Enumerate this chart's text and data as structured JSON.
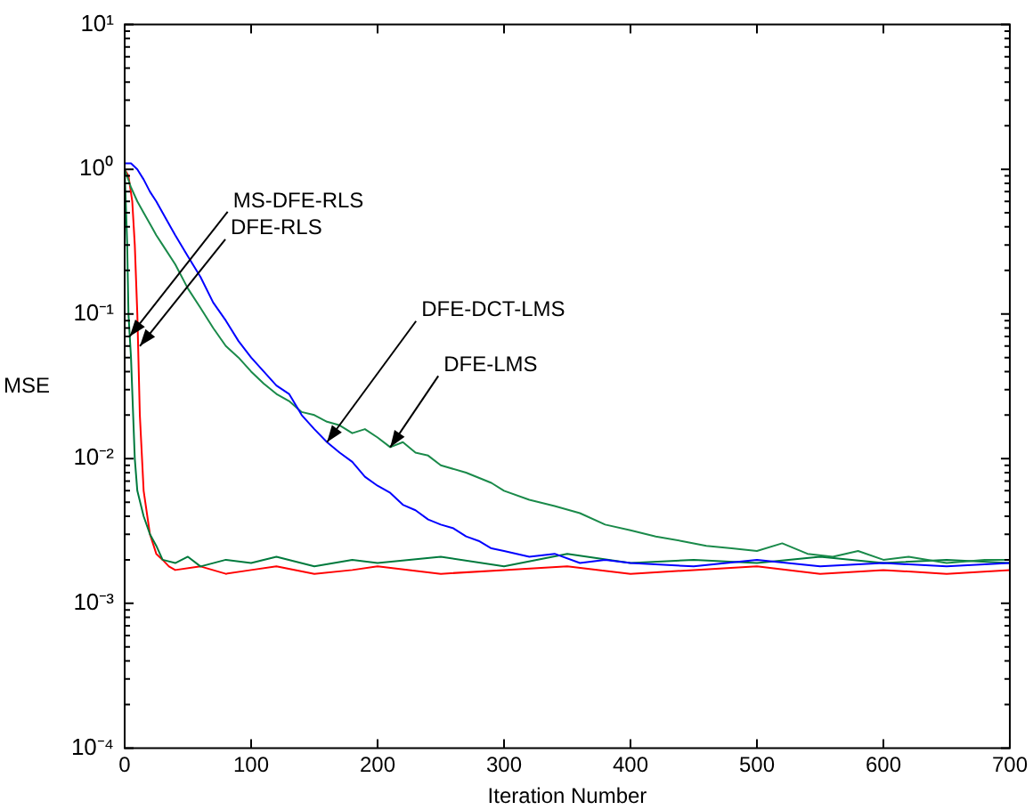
{
  "chart_data": {
    "type": "line",
    "xlabel": "Iteration Number",
    "ylabel": "MSE",
    "log": "y",
    "grid": false,
    "legend": false,
    "marker": "none",
    "line_style": "solid",
    "xlim": [
      0,
      700
    ],
    "xticks": [
      0,
      100,
      200,
      300,
      400,
      500,
      600,
      700
    ],
    "ylim": [
      0.0001,
      10
    ],
    "yticks": [
      {
        "value": 0.0001,
        "label": "10⁻⁴"
      },
      {
        "value": 0.0002,
        "label": null
      },
      {
        "value": 0.0003,
        "label": null
      },
      {
        "value": 0.0004,
        "label": null
      },
      {
        "value": 0.0005,
        "label": null
      },
      {
        "value": 0.0006,
        "label": null
      },
      {
        "value": 0.0007,
        "label": null
      },
      {
        "value": 0.0008,
        "label": null
      },
      {
        "value": 0.0009,
        "label": null
      },
      {
        "value": 0.001,
        "label": "10⁻³"
      },
      {
        "value": 0.002,
        "label": null
      },
      {
        "value": 0.003,
        "label": null
      },
      {
        "value": 0.004,
        "label": null
      },
      {
        "value": 0.005,
        "label": null
      },
      {
        "value": 0.006,
        "label": null
      },
      {
        "value": 0.007,
        "label": null
      },
      {
        "value": 0.008,
        "label": null
      },
      {
        "value": 0.009,
        "label": null
      },
      {
        "value": 0.01,
        "label": "10⁻²"
      },
      {
        "value": 0.02,
        "label": null
      },
      {
        "value": 0.03,
        "label": null
      },
      {
        "value": 0.04,
        "label": null
      },
      {
        "value": 0.05,
        "label": null
      },
      {
        "value": 0.06,
        "label": null
      },
      {
        "value": 0.07,
        "label": null
      },
      {
        "value": 0.08,
        "label": null
      },
      {
        "value": 0.09,
        "label": null
      },
      {
        "value": 0.1,
        "label": "10⁻¹"
      },
      {
        "value": 0.2,
        "label": null
      },
      {
        "value": 0.3,
        "label": null
      },
      {
        "value": 0.4,
        "label": null
      },
      {
        "value": 0.5,
        "label": null
      },
      {
        "value": 0.6,
        "label": null
      },
      {
        "value": 0.7,
        "label": null
      },
      {
        "value": 0.8,
        "label": null
      },
      {
        "value": 0.9,
        "label": null
      },
      {
        "value": 1,
        "label": "10⁰"
      },
      {
        "value": 2,
        "label": null
      },
      {
        "value": 3,
        "label": null
      },
      {
        "value": 4,
        "label": null
      },
      {
        "value": 5,
        "label": null
      },
      {
        "value": 6,
        "label": null
      },
      {
        "value": 7,
        "label": null
      },
      {
        "value": 8,
        "label": null
      },
      {
        "value": 9,
        "label": null
      },
      {
        "value": 10,
        "label": "10¹"
      }
    ],
    "series": [
      {
        "color": "#0000ff",
        "x": [
          0,
          5,
          10,
          15,
          20,
          25,
          30,
          40,
          50,
          60,
          70,
          80,
          90,
          100,
          110,
          120,
          130,
          140,
          150,
          160,
          170,
          180,
          190,
          200,
          210,
          220,
          230,
          240,
          250,
          260,
          270,
          280,
          290,
          300,
          320,
          340,
          360,
          380,
          400,
          450,
          500,
          550,
          600,
          650,
          700
        ],
        "values": [
          1.1,
          1.1,
          1.0,
          0.85,
          0.7,
          0.6,
          0.5,
          0.35,
          0.25,
          0.18,
          0.12,
          0.09,
          0.065,
          0.05,
          0.04,
          0.032,
          0.028,
          0.02,
          0.016,
          0.013,
          0.011,
          0.0095,
          0.0075,
          0.0065,
          0.0058,
          0.0048,
          0.0044,
          0.0038,
          0.0035,
          0.0033,
          0.0029,
          0.0027,
          0.0024,
          0.0023,
          0.0021,
          0.0022,
          0.0019,
          0.002,
          0.0019,
          0.0018,
          0.002,
          0.0018,
          0.0019,
          0.0018,
          0.0019
        ]
      },
      {
        "color": "#1a8a4a",
        "x": [
          0,
          5,
          10,
          15,
          20,
          25,
          30,
          40,
          50,
          60,
          70,
          80,
          90,
          100,
          110,
          120,
          130,
          140,
          150,
          160,
          170,
          180,
          190,
          200,
          210,
          220,
          230,
          240,
          250,
          270,
          290,
          300,
          320,
          340,
          360,
          380,
          400,
          420,
          440,
          460,
          480,
          500,
          520,
          540,
          560,
          580,
          600,
          620,
          650,
          680,
          700
        ],
        "values": [
          1.0,
          0.75,
          0.6,
          0.5,
          0.42,
          0.35,
          0.3,
          0.22,
          0.15,
          0.11,
          0.08,
          0.06,
          0.05,
          0.04,
          0.033,
          0.028,
          0.025,
          0.021,
          0.02,
          0.018,
          0.017,
          0.015,
          0.016,
          0.014,
          0.012,
          0.013,
          0.011,
          0.0105,
          0.009,
          0.008,
          0.0068,
          0.006,
          0.0052,
          0.0047,
          0.0042,
          0.0035,
          0.0032,
          0.0029,
          0.0027,
          0.0025,
          0.0024,
          0.0023,
          0.0026,
          0.0022,
          0.0021,
          0.0023,
          0.002,
          0.0021,
          0.0019,
          0.002,
          0.002
        ]
      },
      {
        "color": "#007a3d",
        "x": [
          0,
          2,
          3,
          5,
          8,
          10,
          15,
          20,
          25,
          30,
          40,
          50,
          60,
          80,
          100,
          120,
          150,
          180,
          200,
          250,
          300,
          350,
          400,
          450,
          500,
          550,
          600,
          650,
          700
        ],
        "values": [
          1.0,
          0.3,
          0.1,
          0.05,
          0.01,
          0.006,
          0.004,
          0.003,
          0.0025,
          0.002,
          0.0019,
          0.0021,
          0.0018,
          0.002,
          0.0019,
          0.0021,
          0.0018,
          0.002,
          0.0019,
          0.0021,
          0.0018,
          0.0022,
          0.0019,
          0.002,
          0.0019,
          0.0021,
          0.0019,
          0.002,
          0.0019
        ]
      },
      {
        "color": "#ff0000",
        "x": [
          0,
          3,
          6,
          8,
          10,
          12,
          15,
          20,
          25,
          30,
          35,
          40,
          60,
          80,
          100,
          120,
          150,
          180,
          200,
          250,
          300,
          350,
          400,
          450,
          500,
          550,
          600,
          650,
          700
        ],
        "values": [
          1.0,
          0.9,
          0.6,
          0.3,
          0.1,
          0.02,
          0.006,
          0.003,
          0.0022,
          0.002,
          0.0018,
          0.0017,
          0.0018,
          0.0016,
          0.0017,
          0.0018,
          0.0016,
          0.0017,
          0.0018,
          0.0016,
          0.0017,
          0.0018,
          0.0016,
          0.0017,
          0.0018,
          0.0016,
          0.0017,
          0.0016,
          0.0017
        ]
      }
    ],
    "annotations": [
      {
        "text": "MS-DFE-RLS",
        "x": 4,
        "y": 0.07
      },
      {
        "text": "DFE-RLS",
        "x": 12,
        "y": 0.06
      },
      {
        "text": "DFE-DCT-LMS",
        "x": 160,
        "y": 0.013
      },
      {
        "text": "DFE-LMS",
        "x": 210,
        "y": 0.012
      }
    ]
  }
}
